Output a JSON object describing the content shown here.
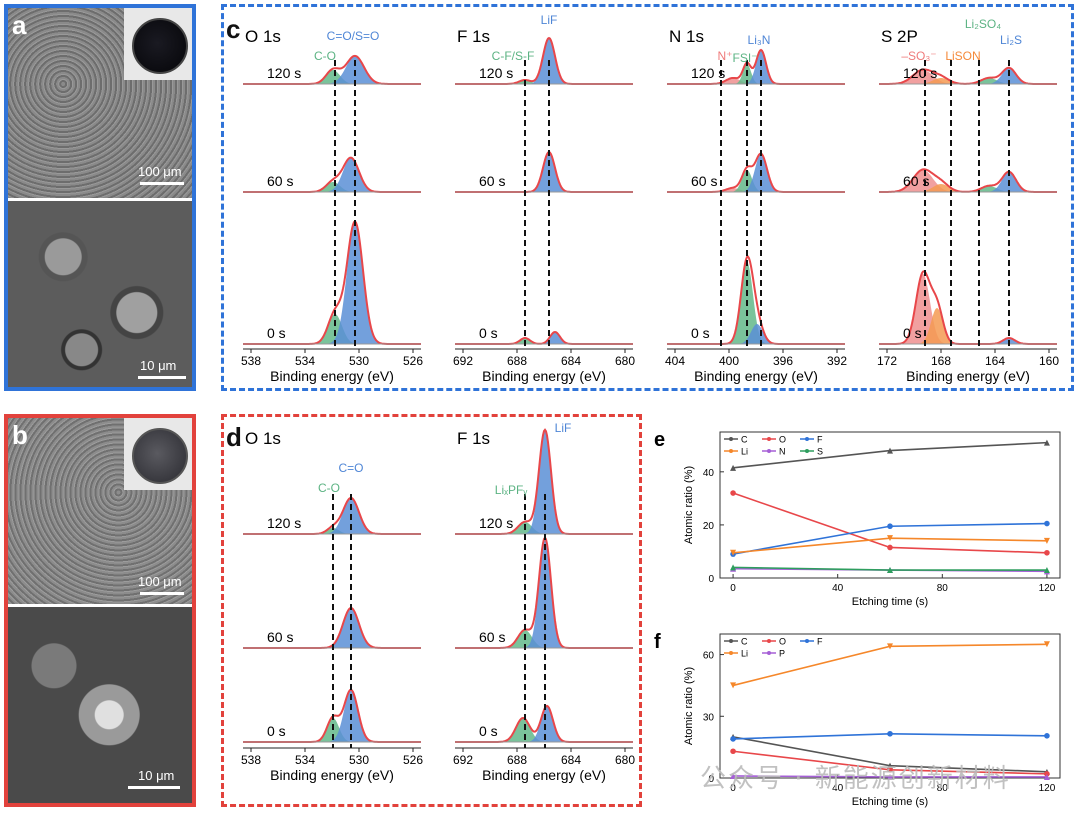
{
  "colors": {
    "blue_frame": "#2f73d8",
    "red_frame": "#e2423c",
    "envelope": "#e8474a",
    "fill_blue": "#5b8fd6",
    "fill_green": "#63b98a",
    "fill_orange": "#f59a52",
    "fill_pink": "#ef8f8f"
  },
  "panels": {
    "a": {
      "label": "a",
      "scale_top": "100 μm",
      "scale_bottom": "10 μm"
    },
    "b": {
      "label": "b",
      "scale_top": "100 μm",
      "scale_bottom": "10 μm"
    },
    "c": {
      "label": "c",
      "subplots": [
        {
          "title": "O 1s",
          "xlabel": "Binding energy (eV)",
          "ticks": [
            "538",
            "534",
            "530",
            "526"
          ],
          "annotations": [
            {
              "text": "C=O/S=O",
              "color": "blue"
            },
            {
              "text": "C-O",
              "color": "green"
            }
          ]
        },
        {
          "title": "F 1s",
          "xlabel": "Binding energy (eV)",
          "ticks": [
            "692",
            "688",
            "684",
            "680"
          ],
          "annotations": [
            {
              "text": "LiF",
              "color": "blue"
            },
            {
              "text": "C-F/S-F",
              "color": "green"
            }
          ]
        },
        {
          "title": "N 1s",
          "xlabel": "Binding energy (eV)",
          "ticks": [
            "404",
            "400",
            "396",
            "392"
          ],
          "annotations": [
            {
              "text": "Li₃N",
              "color": "blue"
            },
            {
              "text": "FSI⁻",
              "color": "green"
            },
            {
              "text": "N⁺",
              "color": "pink"
            }
          ]
        },
        {
          "title": "S 2P",
          "xlabel": "Binding energy (eV)",
          "ticks": [
            "172",
            "168",
            "164",
            "160"
          ],
          "annotations": [
            {
              "text": "Li₂SO₄",
              "color": "green"
            },
            {
              "text": "Li₂S",
              "color": "blue"
            },
            {
              "text": "–SO₃⁻",
              "color": "pink"
            },
            {
              "text": "LiSON",
              "color": "orange"
            }
          ]
        }
      ],
      "times": [
        "120 s",
        "60 s",
        "0 s"
      ]
    },
    "d": {
      "label": "d",
      "subplots": [
        {
          "title": "O 1s",
          "xlabel": "Binding energy (eV)",
          "ticks": [
            "538",
            "534",
            "530",
            "526"
          ],
          "annotations": [
            {
              "text": "C=O",
              "color": "blue"
            },
            {
              "text": "C-O",
              "color": "green"
            }
          ]
        },
        {
          "title": "F 1s",
          "xlabel": "Binding energy (eV)",
          "ticks": [
            "692",
            "688",
            "684",
            "680"
          ],
          "annotations": [
            {
              "text": "LiF",
              "color": "blue"
            },
            {
              "text": "LiₓPFᵧ",
              "color": "green"
            }
          ]
        }
      ],
      "times": [
        "120 s",
        "60 s",
        "0 s"
      ]
    }
  },
  "chart_data": [
    {
      "type": "line",
      "panel": "e",
      "title": "",
      "xlabel": "Etching time (s)",
      "ylabel": "Atomic ratio (%)",
      "x": [
        0,
        60,
        120
      ],
      "xlim": [
        -5,
        125
      ],
      "ylim": [
        0,
        55
      ],
      "xticks": [
        0,
        40,
        80,
        120
      ],
      "yticks": [
        0,
        20,
        40
      ],
      "series": [
        {
          "name": "C",
          "color": "#555555",
          "marker": "triangle",
          "values": [
            41.5,
            48,
            51
          ]
        },
        {
          "name": "O",
          "color": "#e8474a",
          "marker": "circle",
          "values": [
            32,
            11.5,
            9.5
          ]
        },
        {
          "name": "F",
          "color": "#2f73d8",
          "marker": "circle",
          "values": [
            9,
            19.5,
            20.5
          ]
        },
        {
          "name": "Li",
          "color": "#f5872a",
          "marker": "triangle-down",
          "values": [
            9.5,
            15,
            14
          ]
        },
        {
          "name": "N",
          "color": "#a55fd6",
          "marker": "triangle",
          "values": [
            3.5,
            3,
            2.5
          ]
        },
        {
          "name": "S",
          "color": "#2e9e5e",
          "marker": "triangle",
          "values": [
            4,
            3,
            3
          ]
        }
      ]
    },
    {
      "type": "line",
      "panel": "f",
      "title": "",
      "xlabel": "Etching time (s)",
      "ylabel": "Atomic ratio (%)",
      "x": [
        0,
        60,
        120
      ],
      "xlim": [
        -5,
        125
      ],
      "ylim": [
        0,
        70
      ],
      "xticks": [
        0,
        40,
        80,
        120
      ],
      "yticks": [
        0,
        30,
        60
      ],
      "series": [
        {
          "name": "C",
          "color": "#555555",
          "marker": "triangle",
          "values": [
            20,
            6,
            3
          ]
        },
        {
          "name": "O",
          "color": "#e8474a",
          "marker": "circle",
          "values": [
            13,
            4,
            2
          ]
        },
        {
          "name": "F",
          "color": "#2f73d8",
          "marker": "circle",
          "values": [
            19,
            21.5,
            20.5
          ]
        },
        {
          "name": "Li",
          "color": "#f5872a",
          "marker": "triangle-down",
          "values": [
            45,
            64,
            65
          ]
        },
        {
          "name": "P",
          "color": "#a55fd6",
          "marker": "triangle",
          "values": [
            1,
            0.5,
            0.5
          ]
        }
      ]
    }
  ],
  "watermark": "公众号 · 新能源创新材料"
}
